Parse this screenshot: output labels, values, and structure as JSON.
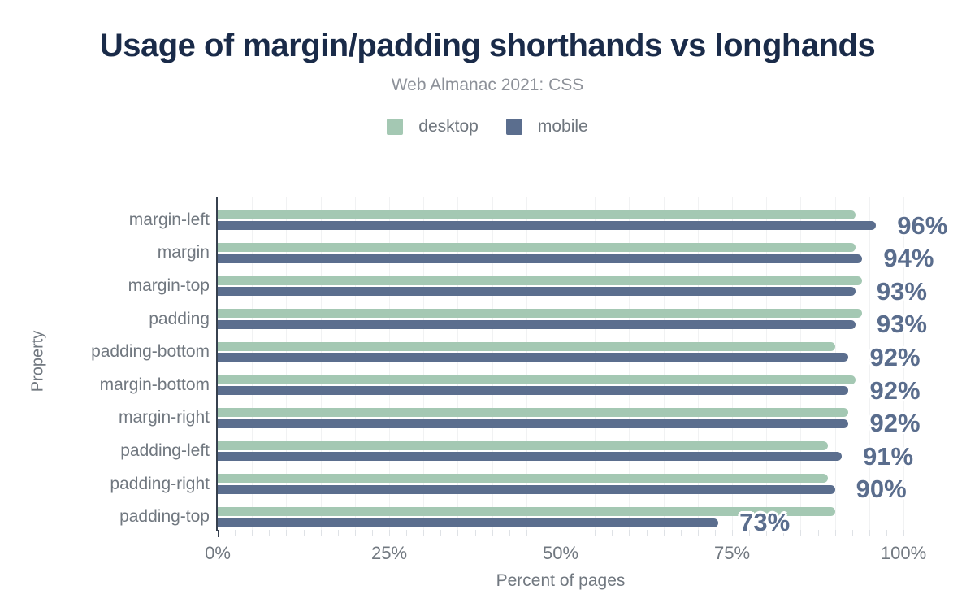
{
  "title": "Usage of margin/padding shorthands vs longhands",
  "subtitle": "Web Almanac 2021: CSS",
  "legend": [
    {
      "label": "desktop",
      "color": "#a4c8b3"
    },
    {
      "label": "mobile",
      "color": "#5b6e8e"
    }
  ],
  "colors": {
    "desktop_bar": "#a4c8b3",
    "mobile_bar": "#5b6e8e",
    "value_label": "#5a6d8d",
    "title": "#1a2b49",
    "axis_line": "#37414f",
    "text_gray": "#717880"
  },
  "chart_data": {
    "type": "bar",
    "orientation": "horizontal",
    "title": "Usage of margin/padding shorthands vs longhands",
    "subtitle": "Web Almanac 2021: CSS",
    "xlabel": "Percent of pages",
    "ylabel": "Property",
    "xlim": [
      0,
      100
    ],
    "x_ticks": [
      "0%",
      "25%",
      "50%",
      "75%",
      "100%"
    ],
    "grid": "light vertical gridlines every 5%, minor ticks every 2.5%",
    "legend_position": "top-center",
    "categories": [
      "margin-left",
      "margin",
      "margin-top",
      "padding",
      "padding-bottom",
      "margin-bottom",
      "margin-right",
      "padding-left",
      "padding-right",
      "padding-top"
    ],
    "series": [
      {
        "name": "desktop",
        "values": [
          93,
          93,
          94,
          94,
          90,
          93,
          92,
          89,
          89,
          90
        ]
      },
      {
        "name": "mobile",
        "values": [
          96,
          94,
          93,
          93,
          92,
          92,
          92,
          91,
          90,
          73
        ]
      }
    ],
    "data_labels": [
      "96%",
      "94%",
      "93%",
      "93%",
      "92%",
      "92%",
      "92%",
      "91%",
      "90%",
      "73%"
    ],
    "data_labels_series": "mobile"
  }
}
